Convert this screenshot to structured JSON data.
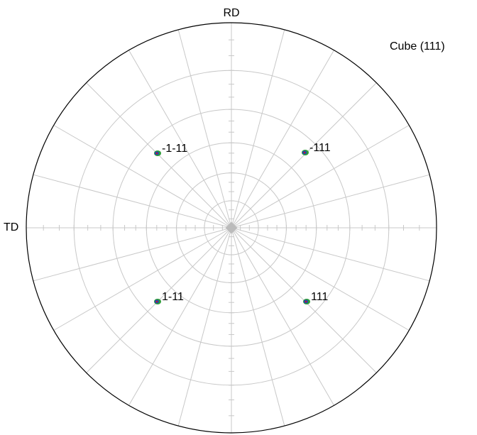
{
  "figure": {
    "title": "Cube (111)",
    "axes": {
      "top": "RD",
      "left": "TD"
    },
    "poles": [
      {
        "label": "-1-11"
      },
      {
        "label": "-111"
      },
      {
        "label": "1-11"
      },
      {
        "label": "111"
      }
    ]
  }
}
